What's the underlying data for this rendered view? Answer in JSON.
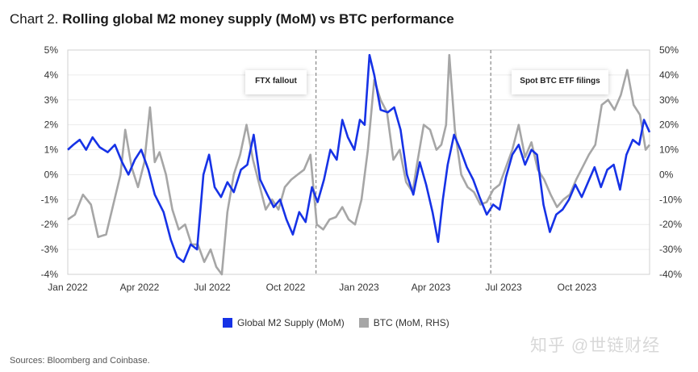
{
  "header": {
    "prefix": "Chart 2.",
    "title": "Rolling global M2 money supply (MoM) vs BTC performance"
  },
  "footer": {
    "source": "Sources: Bloomberg and Coinbase.",
    "watermark": "知乎 @世链财经"
  },
  "colors": {
    "m2": "#1632e6",
    "btc": "#a6a6a6",
    "grid": "#ececec",
    "plot_border": "#d0d0d0"
  },
  "chart_data": {
    "type": "line",
    "title": "Rolling global M2 money supply (MoM) vs BTC performance",
    "x_range": [
      "2022-01-01",
      "2023-12-31"
    ],
    "x_ticks": [
      {
        "date": "2022-01-01",
        "label": "Jan 2022"
      },
      {
        "date": "2022-04-01",
        "label": "Apr 2022"
      },
      {
        "date": "2022-07-01",
        "label": "Jul 2022"
      },
      {
        "date": "2022-10-01",
        "label": "Oct 2022"
      },
      {
        "date": "2023-01-01",
        "label": "Jan 2023"
      },
      {
        "date": "2023-04-01",
        "label": "Apr 2023"
      },
      {
        "date": "2023-07-01",
        "label": "Jul 2023"
      },
      {
        "date": "2023-10-01",
        "label": "Oct 2023"
      }
    ],
    "y_left": {
      "range": [
        -4,
        5
      ],
      "ticks": [
        5,
        4,
        3,
        2,
        1,
        0,
        -1,
        -2,
        -3,
        -4
      ],
      "tick_labels": [
        "5%",
        "4%",
        "3%",
        "2%",
        "1%",
        "0%",
        "-1%",
        "-2%",
        "-3%",
        "-4%"
      ]
    },
    "y_right": {
      "range": [
        -40,
        50
      ],
      "ticks": [
        50,
        40,
        30,
        20,
        10,
        0,
        -10,
        -20,
        -30,
        -40
      ],
      "tick_labels": [
        "50%",
        "40%",
        "30%",
        "20%",
        "10%",
        "0%",
        "-10%",
        "-20%",
        "-30%",
        "-40%"
      ]
    },
    "grid": "horizontal",
    "legend": {
      "placement": "bottom",
      "entries": [
        "Global M2 Supply (MoM)",
        "BTC (MoM, RHS)"
      ]
    },
    "annotations": [
      {
        "label": "FTX fallout",
        "date": "2022-11-08"
      },
      {
        "label": "Spot BTC ETF filings",
        "date": "2023-06-15"
      }
    ],
    "series": [
      {
        "name": "Global M2 Supply (MoM)",
        "axis": "left",
        "points": [
          [
            "2022-01-01",
            1.0
          ],
          [
            "2022-01-08",
            1.2
          ],
          [
            "2022-01-16",
            1.4
          ],
          [
            "2022-01-24",
            1.0
          ],
          [
            "2022-02-01",
            1.5
          ],
          [
            "2022-02-10",
            1.1
          ],
          [
            "2022-02-20",
            0.9
          ],
          [
            "2022-03-01",
            1.2
          ],
          [
            "2022-03-10",
            0.5
          ],
          [
            "2022-03-18",
            0.0
          ],
          [
            "2022-03-26",
            0.6
          ],
          [
            "2022-04-03",
            1.0
          ],
          [
            "2022-04-12",
            0.2
          ],
          [
            "2022-04-20",
            -0.8
          ],
          [
            "2022-05-01",
            -1.5
          ],
          [
            "2022-05-10",
            -2.6
          ],
          [
            "2022-05-18",
            -3.3
          ],
          [
            "2022-05-26",
            -3.5
          ],
          [
            "2022-06-04",
            -2.8
          ],
          [
            "2022-06-12",
            -3.0
          ],
          [
            "2022-06-20",
            0.0
          ],
          [
            "2022-06-27",
            0.8
          ],
          [
            "2022-07-04",
            -0.5
          ],
          [
            "2022-07-12",
            -0.9
          ],
          [
            "2022-07-20",
            -0.3
          ],
          [
            "2022-07-28",
            -0.7
          ],
          [
            "2022-08-06",
            0.2
          ],
          [
            "2022-08-14",
            0.4
          ],
          [
            "2022-08-22",
            1.6
          ],
          [
            "2022-08-30",
            -0.2
          ],
          [
            "2022-09-08",
            -0.8
          ],
          [
            "2022-09-16",
            -1.3
          ],
          [
            "2022-09-24",
            -1.0
          ],
          [
            "2022-10-02",
            -1.8
          ],
          [
            "2022-10-10",
            -2.4
          ],
          [
            "2022-10-18",
            -1.5
          ],
          [
            "2022-10-26",
            -1.9
          ],
          [
            "2022-11-03",
            -0.5
          ],
          [
            "2022-11-10",
            -1.1
          ],
          [
            "2022-11-18",
            -0.2
          ],
          [
            "2022-11-26",
            1.0
          ],
          [
            "2022-12-04",
            0.6
          ],
          [
            "2022-12-11",
            2.2
          ],
          [
            "2022-12-18",
            1.5
          ],
          [
            "2022-12-26",
            1.0
          ],
          [
            "2023-01-02",
            2.2
          ],
          [
            "2023-01-08",
            2.0
          ],
          [
            "2023-01-14",
            4.8
          ],
          [
            "2023-01-20",
            4.0
          ],
          [
            "2023-01-28",
            2.6
          ],
          [
            "2023-02-06",
            2.5
          ],
          [
            "2023-02-14",
            2.7
          ],
          [
            "2023-02-22",
            1.8
          ],
          [
            "2023-03-02",
            0.0
          ],
          [
            "2023-03-10",
            -0.8
          ],
          [
            "2023-03-18",
            0.5
          ],
          [
            "2023-03-26",
            -0.4
          ],
          [
            "2023-04-03",
            -1.5
          ],
          [
            "2023-04-10",
            -2.7
          ],
          [
            "2023-04-16",
            -1.0
          ],
          [
            "2023-04-22",
            0.4
          ],
          [
            "2023-04-30",
            1.6
          ],
          [
            "2023-05-08",
            1.0
          ],
          [
            "2023-05-16",
            0.3
          ],
          [
            "2023-05-24",
            -0.2
          ],
          [
            "2023-06-01",
            -0.9
          ],
          [
            "2023-06-10",
            -1.6
          ],
          [
            "2023-06-18",
            -1.2
          ],
          [
            "2023-06-26",
            -1.4
          ],
          [
            "2023-07-04",
            -0.1
          ],
          [
            "2023-07-12",
            0.8
          ],
          [
            "2023-07-20",
            1.2
          ],
          [
            "2023-07-28",
            0.4
          ],
          [
            "2023-08-05",
            1.0
          ],
          [
            "2023-08-12",
            0.8
          ],
          [
            "2023-08-20",
            -1.2
          ],
          [
            "2023-08-28",
            -2.3
          ],
          [
            "2023-09-05",
            -1.6
          ],
          [
            "2023-09-13",
            -1.4
          ],
          [
            "2023-09-21",
            -1.0
          ],
          [
            "2023-09-29",
            -0.4
          ],
          [
            "2023-10-07",
            -0.9
          ],
          [
            "2023-10-15",
            -0.3
          ],
          [
            "2023-10-23",
            0.3
          ],
          [
            "2023-10-31",
            -0.5
          ],
          [
            "2023-11-08",
            0.2
          ],
          [
            "2023-11-16",
            0.4
          ],
          [
            "2023-11-24",
            -0.6
          ],
          [
            "2023-12-02",
            0.8
          ],
          [
            "2023-12-10",
            1.4
          ],
          [
            "2023-12-18",
            1.2
          ],
          [
            "2023-12-24",
            2.2
          ],
          [
            "2023-12-31",
            1.7
          ]
        ]
      },
      {
        "name": "BTC (MoM, RHS)",
        "axis": "right",
        "points": [
          [
            "2022-01-01",
            -18
          ],
          [
            "2022-01-10",
            -16
          ],
          [
            "2022-01-20",
            -8
          ],
          [
            "2022-01-30",
            -12
          ],
          [
            "2022-02-08",
            -25
          ],
          [
            "2022-02-18",
            -24
          ],
          [
            "2022-02-27",
            -12
          ],
          [
            "2022-03-08",
            0
          ],
          [
            "2022-03-14",
            18
          ],
          [
            "2022-03-22",
            3
          ],
          [
            "2022-03-30",
            -5
          ],
          [
            "2022-04-07",
            5
          ],
          [
            "2022-04-14",
            27
          ],
          [
            "2022-04-20",
            5
          ],
          [
            "2022-04-26",
            9
          ],
          [
            "2022-05-04",
            0
          ],
          [
            "2022-05-12",
            -14
          ],
          [
            "2022-05-20",
            -22
          ],
          [
            "2022-05-28",
            -20
          ],
          [
            "2022-06-05",
            -28
          ],
          [
            "2022-06-13",
            -28
          ],
          [
            "2022-06-21",
            -35
          ],
          [
            "2022-06-29",
            -30
          ],
          [
            "2022-07-06",
            -37
          ],
          [
            "2022-07-13",
            -40
          ],
          [
            "2022-07-20",
            -15
          ],
          [
            "2022-07-28",
            0
          ],
          [
            "2022-08-05",
            8
          ],
          [
            "2022-08-13",
            20
          ],
          [
            "2022-08-21",
            6
          ],
          [
            "2022-08-29",
            -4
          ],
          [
            "2022-09-06",
            -14
          ],
          [
            "2022-09-14",
            -10
          ],
          [
            "2022-09-22",
            -14
          ],
          [
            "2022-09-30",
            -5
          ],
          [
            "2022-10-08",
            -2
          ],
          [
            "2022-10-16",
            0
          ],
          [
            "2022-10-24",
            2
          ],
          [
            "2022-11-01",
            8
          ],
          [
            "2022-11-09",
            -20
          ],
          [
            "2022-11-17",
            -22
          ],
          [
            "2022-11-25",
            -18
          ],
          [
            "2022-12-03",
            -17
          ],
          [
            "2022-12-11",
            -13
          ],
          [
            "2022-12-19",
            -18
          ],
          [
            "2022-12-27",
            -20
          ],
          [
            "2023-01-04",
            -10
          ],
          [
            "2023-01-12",
            10
          ],
          [
            "2023-01-20",
            38
          ],
          [
            "2023-01-28",
            30
          ],
          [
            "2023-02-05",
            25
          ],
          [
            "2023-02-13",
            6
          ],
          [
            "2023-02-21",
            10
          ],
          [
            "2023-03-01",
            -3
          ],
          [
            "2023-03-09",
            -7
          ],
          [
            "2023-03-15",
            5
          ],
          [
            "2023-03-23",
            20
          ],
          [
            "2023-03-31",
            18
          ],
          [
            "2023-04-08",
            10
          ],
          [
            "2023-04-14",
            12
          ],
          [
            "2023-04-20",
            20
          ],
          [
            "2023-04-24",
            48
          ],
          [
            "2023-05-01",
            18
          ],
          [
            "2023-05-09",
            0
          ],
          [
            "2023-05-17",
            -5
          ],
          [
            "2023-05-25",
            -7
          ],
          [
            "2023-06-02",
            -12
          ],
          [
            "2023-06-10",
            -11
          ],
          [
            "2023-06-18",
            -6
          ],
          [
            "2023-06-26",
            -4
          ],
          [
            "2023-07-04",
            3
          ],
          [
            "2023-07-12",
            10
          ],
          [
            "2023-07-20",
            20
          ],
          [
            "2023-07-28",
            7
          ],
          [
            "2023-08-05",
            13
          ],
          [
            "2023-08-13",
            2
          ],
          [
            "2023-08-21",
            -2
          ],
          [
            "2023-08-29",
            -8
          ],
          [
            "2023-09-06",
            -13
          ],
          [
            "2023-09-14",
            -10
          ],
          [
            "2023-09-22",
            -8
          ],
          [
            "2023-09-30",
            -2
          ],
          [
            "2023-10-08",
            3
          ],
          [
            "2023-10-16",
            8
          ],
          [
            "2023-10-24",
            12
          ],
          [
            "2023-11-01",
            28
          ],
          [
            "2023-11-09",
            30
          ],
          [
            "2023-11-17",
            26
          ],
          [
            "2023-11-25",
            32
          ],
          [
            "2023-12-03",
            42
          ],
          [
            "2023-12-11",
            28
          ],
          [
            "2023-12-19",
            24
          ],
          [
            "2023-12-26",
            10
          ],
          [
            "2023-12-31",
            12
          ]
        ]
      }
    ]
  }
}
